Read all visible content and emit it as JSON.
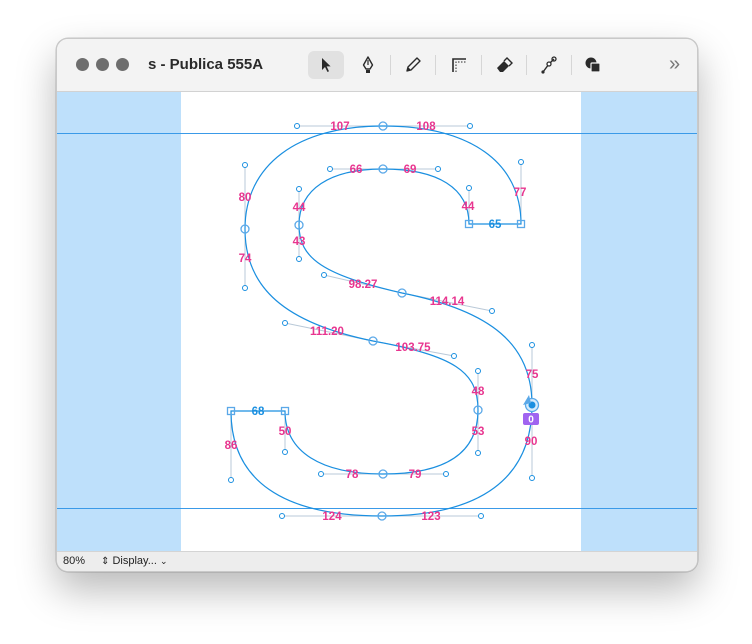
{
  "window": {
    "title": "s - Publica 555A"
  },
  "toolbar": {
    "tools": [
      "pointer",
      "pen",
      "pencil",
      "corner",
      "eraser",
      "knife",
      "shapes"
    ],
    "active_tool": "pointer",
    "overflow": "»"
  },
  "measurements": {
    "top_left": "107",
    "top_right": "108",
    "inner_top_left": "66",
    "inner_top_right": "69",
    "upper_left_outer": "80",
    "upper_left_outer_low": "74",
    "upper_left_inner": "44",
    "upper_left_inner_low": "43",
    "terminal_inner": "44",
    "terminal_top": "65",
    "terminal_outer": "77",
    "spine_upper_left": "98.27",
    "spine_upper_right": "114.14",
    "spine_lower_left": "111.20",
    "spine_lower_right": "103.75",
    "right_outer_upper": "75",
    "right_outer_lower": "90",
    "right_inner_upper": "48",
    "right_inner_lower": "53",
    "lower_terminal_top": "68",
    "lower_terminal_inner": "50",
    "lower_terminal_outer": "86",
    "inner_bottom_left": "78",
    "inner_bottom_right": "79",
    "bottom_left": "124",
    "bottom_right": "123",
    "selected_badge": "0"
  },
  "status": {
    "zoom": "80%",
    "display": "Display..."
  },
  "colors": {
    "accent": "#1a8fe0",
    "label": "#e8358f",
    "badge": "#a064f0",
    "margin_fill": "#bee0fb",
    "canvas": "#ffffff"
  }
}
